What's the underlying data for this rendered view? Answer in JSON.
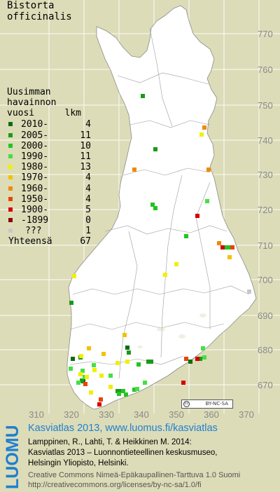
{
  "species": {
    "line1": "Bistorta",
    "line2": "officinalis"
  },
  "legend": {
    "title": [
      "Uusimman",
      "havainnon"
    ],
    "header_year": "vuosi",
    "header_count": "lkm",
    "rows": [
      {
        "label": "2010-",
        "count": "4",
        "color": "#0b6e0b"
      },
      {
        "label": "2005-",
        "count": "11",
        "color": "#1a9a1a"
      },
      {
        "label": "2000-",
        "count": "10",
        "color": "#23c423"
      },
      {
        "label": "1990-",
        "count": "11",
        "color": "#44e044"
      },
      {
        "label": "1980-",
        "count": "13",
        "color": "#f0f000"
      },
      {
        "label": "1970-",
        "count": "4",
        "color": "#f2c200"
      },
      {
        "label": "1960-",
        "count": "4",
        "color": "#f08a00"
      },
      {
        "label": "1950-",
        "count": "4",
        "color": "#e84400"
      },
      {
        "label": "1900-",
        "count": "5",
        "color": "#d40000"
      },
      {
        "label": "-1899",
        "count": "0",
        "color": "#8b0000"
      },
      {
        "label": "???",
        "count": "1",
        "color": "#c8c8c8"
      }
    ],
    "total_label": "Yhteensä",
    "total_count": "67"
  },
  "axes": {
    "y_labels": [
      "770",
      "760",
      "750",
      "740",
      "730",
      "720",
      "710",
      "700",
      "690",
      "680",
      "670"
    ],
    "x_labels": [
      "310",
      "320",
      "330",
      "340",
      "350",
      "360",
      "370"
    ]
  },
  "cc_badge": "BY-NC-SA",
  "footer": {
    "logo": "LUOMUS",
    "title": "Kasviatlas 2013, www.luomus.fi/kasviatlas",
    "citation": [
      "Lamppinen, R., Lahti, T. & Heikkinen M. 2014:",
      "Kasviatlas 2013 – Luonnontieteellinen keskusmuseo,",
      "Helsingin Yliopisto, Helsinki."
    ],
    "license": [
      "Creative Commons Nimeä-Epäkaupallinen-Tarttuva 1.0 Suomi",
      "http://creativecommons.org/licenses/by-nc-sa/1.0/fi"
    ]
  },
  "observations": [
    {
      "period": "2010-",
      "color": "#0b6e0b",
      "cells": [
        [
          104,
          512
        ],
        [
          119,
          544
        ],
        [
          182,
          496
        ],
        [
          272,
          516
        ]
      ]
    },
    {
      "period": "2005-",
      "color": "#1a9a1a",
      "cells": [
        [
          204,
          137
        ],
        [
          222,
          213
        ],
        [
          102,
          432
        ],
        [
          117,
          543
        ],
        [
          184,
          503
        ],
        [
          212,
          516
        ],
        [
          216,
          516
        ],
        [
          168,
          558
        ],
        [
          172,
          558
        ],
        [
          115,
          510
        ],
        [
          286,
          512
        ]
      ]
    },
    {
      "period": "2000-",
      "color": "#23c423",
      "cells": [
        [
          218,
          292
        ],
        [
          222,
          297
        ],
        [
          266,
          337
        ],
        [
          328,
          353
        ],
        [
          324,
          353
        ],
        [
          170,
          562
        ],
        [
          176,
          558
        ],
        [
          192,
          556
        ],
        [
          180,
          563
        ],
        [
          198,
          520
        ]
      ]
    },
    {
      "period": "1990-",
      "color": "#44e044",
      "cells": [
        [
          296,
          287
        ],
        [
          101,
          526
        ],
        [
          118,
          529
        ],
        [
          134,
          521
        ],
        [
          290,
          497
        ],
        [
          292,
          510
        ],
        [
          207,
          546
        ],
        [
          112,
          546
        ],
        [
          158,
          536
        ],
        [
          196,
          555
        ],
        [
          121,
          538
        ]
      ]
    },
    {
      "period": "1980-",
      "color": "#f0f000",
      "cells": [
        [
          288,
          192
        ],
        [
          252,
          377
        ],
        [
          106,
          394
        ],
        [
          236,
          392
        ],
        [
          116,
          508
        ],
        [
          135,
          528
        ],
        [
          115,
          534
        ],
        [
          130,
          560
        ],
        [
          158,
          552
        ],
        [
          168,
          518
        ],
        [
          182,
          516
        ],
        [
          145,
          536
        ],
        [
          124,
          538
        ]
      ]
    },
    {
      "period": "1970-",
      "color": "#f2c200",
      "cells": [
        [
          328,
          367
        ],
        [
          178,
          478
        ],
        [
          127,
          497
        ],
        [
          148,
          505
        ]
      ]
    },
    {
      "period": "1960-",
      "color": "#f08a00",
      "cells": [
        [
          192,
          242
        ],
        [
          298,
          242
        ],
        [
          292,
          182
        ],
        [
          313,
          347
        ]
      ]
    },
    {
      "period": "1950-",
      "color": "#e84400",
      "cells": [
        [
          332,
          353
        ],
        [
          144,
          570
        ],
        [
          122,
          548
        ],
        [
          266,
          512
        ]
      ]
    },
    {
      "period": "1900-",
      "color": "#d40000",
      "cells": [
        [
          282,
          308
        ],
        [
          318,
          353
        ],
        [
          262,
          546
        ],
        [
          282,
          512
        ],
        [
          142,
          577
        ]
      ]
    },
    {
      "period": "???",
      "color": "#c8c8c8",
      "cells": [
        [
          356,
          416
        ]
      ]
    }
  ]
}
